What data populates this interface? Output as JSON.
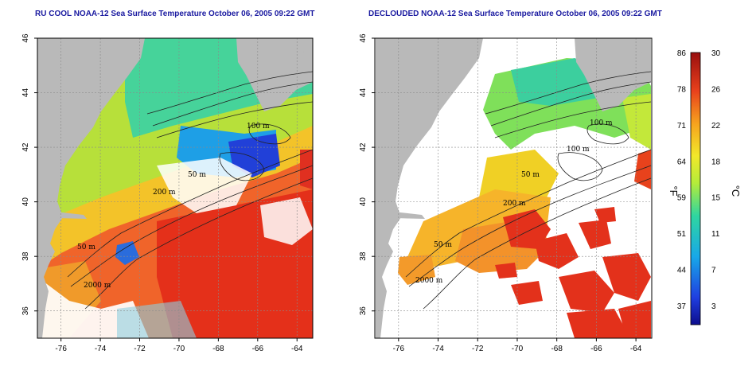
{
  "panels": [
    {
      "title": "RU COOL NOAA-12 Sea Surface Temperature October 06, 2005 09:22 GMT",
      "clouds_removed": false
    },
    {
      "title": "DECLOUDED NOAA-12 Sea Surface Temperature October 06, 2005 09:22 GMT",
      "clouds_removed": true
    }
  ],
  "axes": {
    "longitude_ticks": [
      "-76",
      "-74",
      "-72",
      "-70",
      "-68",
      "-66",
      "-64"
    ],
    "latitude_ticks": [
      "46",
      "44",
      "42",
      "40",
      "38",
      "36"
    ],
    "lon_range": [
      -77.2,
      -63.2
    ],
    "lat_range": [
      35.0,
      46.0
    ]
  },
  "contour_labels": [
    "100 m",
    "100 m",
    "50 m",
    "200 m",
    "50 m",
    "2000 m"
  ],
  "colorbar": {
    "fahrenheit_ticks": [
      "86",
      "78",
      "71",
      "64",
      "59",
      "51",
      "44",
      "37"
    ],
    "celsius_ticks": [
      "30",
      "26",
      "22",
      "18",
      "15",
      "11",
      "7",
      "3"
    ],
    "fahrenheit_unit": "°F",
    "celsius_unit": "°C",
    "range_c": [
      0,
      30
    ]
  },
  "colors": {
    "land": "#b9b9b9",
    "cloud": "#ffffff",
    "title": "#1a1aa0"
  }
}
